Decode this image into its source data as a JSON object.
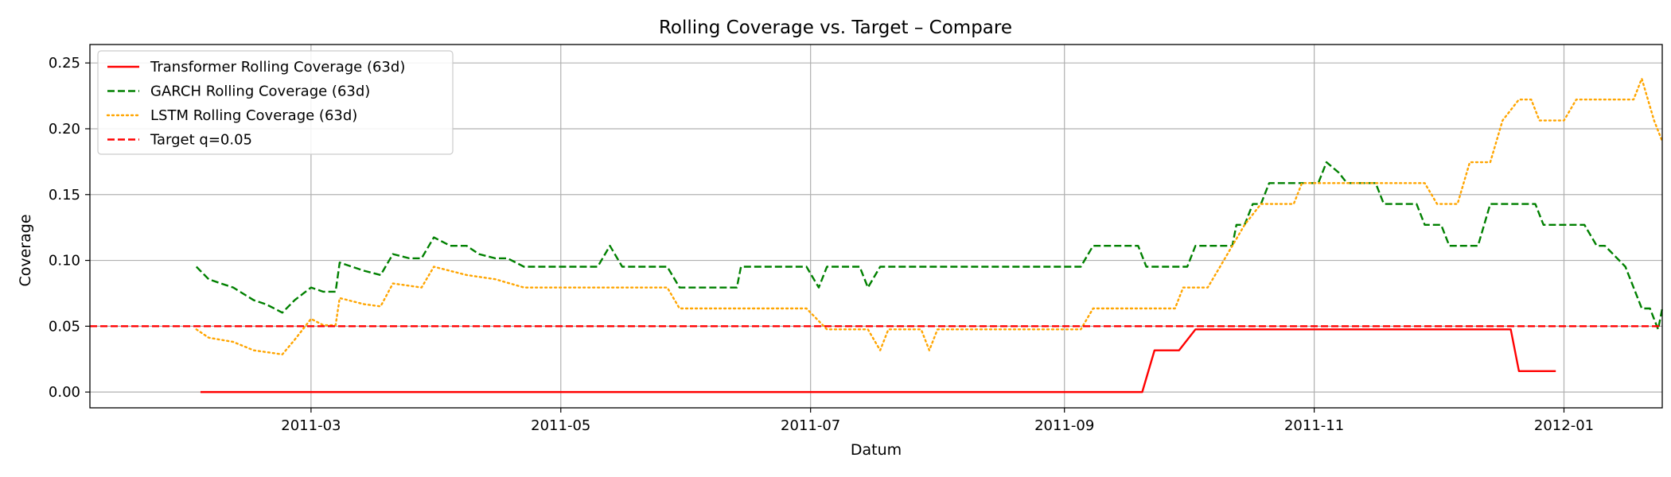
{
  "chart_data": {
    "type": "line",
    "title": "Rolling Coverage vs. Target – Compare",
    "xlabel": "Datum",
    "ylabel": "Coverage",
    "xlim": [
      "2011-01-06",
      "2012-01-25"
    ],
    "ylim": [
      -0.012,
      0.264
    ],
    "grid": true,
    "legend_position": "top-left",
    "x_ticks": [
      "2011-03-01",
      "2011-05-01",
      "2011-07-01",
      "2011-09-01",
      "2011-11-01",
      "2012-01-01"
    ],
    "x_tick_labels": [
      "2011-03",
      "2011-05",
      "2011-07",
      "2011-09",
      "2011-11",
      "2012-01"
    ],
    "y_ticks": [
      0.0,
      0.05,
      0.1,
      0.15,
      0.2,
      0.25
    ],
    "y_tick_labels": [
      "0.00",
      "0.05",
      "0.10",
      "0.15",
      "0.20",
      "0.25"
    ],
    "series": [
      {
        "name": "Transformer Rolling Coverage (63d)",
        "color": "#ff0000",
        "style": "solid",
        "points": [
          [
            "2011-02-02",
            0.0
          ],
          [
            "2011-09-20",
            0.0
          ],
          [
            "2011-09-23",
            0.0317
          ],
          [
            "2011-09-29",
            0.0317
          ],
          [
            "2011-10-03",
            0.0476
          ],
          [
            "2011-12-19",
            0.0476
          ],
          [
            "2011-12-21",
            0.0159
          ],
          [
            "2011-12-30",
            0.0159
          ]
        ]
      },
      {
        "name": "GARCH Rolling Coverage (63d)",
        "color": "#008000",
        "style": "dashed",
        "points": [
          [
            "2011-02-01",
            0.0952
          ],
          [
            "2011-02-04",
            0.0857
          ],
          [
            "2011-02-07",
            0.0825
          ],
          [
            "2011-02-10",
            0.0794
          ],
          [
            "2011-02-15",
            0.0698
          ],
          [
            "2011-02-18",
            0.0667
          ],
          [
            "2011-02-22",
            0.0603
          ],
          [
            "2011-02-25",
            0.0698
          ],
          [
            "2011-03-01",
            0.0794
          ],
          [
            "2011-03-04",
            0.0762
          ],
          [
            "2011-03-07",
            0.0762
          ],
          [
            "2011-03-08",
            0.0984
          ],
          [
            "2011-03-11",
            0.0952
          ],
          [
            "2011-03-14",
            0.0921
          ],
          [
            "2011-03-18",
            0.0889
          ],
          [
            "2011-03-21",
            0.1048
          ],
          [
            "2011-03-25",
            0.1016
          ],
          [
            "2011-03-28",
            0.1016
          ],
          [
            "2011-03-31",
            0.1175
          ],
          [
            "2011-04-04",
            0.1111
          ],
          [
            "2011-04-08",
            0.1111
          ],
          [
            "2011-04-11",
            0.1048
          ],
          [
            "2011-04-15",
            0.1016
          ],
          [
            "2011-04-18",
            0.1016
          ],
          [
            "2011-04-22",
            0.0952
          ],
          [
            "2011-05-10",
            0.0952
          ],
          [
            "2011-05-13",
            0.1111
          ],
          [
            "2011-05-16",
            0.0952
          ],
          [
            "2011-05-27",
            0.0952
          ],
          [
            "2011-05-30",
            0.0794
          ],
          [
            "2011-06-13",
            0.0794
          ],
          [
            "2011-06-14",
            0.0952
          ],
          [
            "2011-06-30",
            0.0952
          ],
          [
            "2011-07-03",
            0.0794
          ],
          [
            "2011-07-05",
            0.0952
          ],
          [
            "2011-07-13",
            0.0952
          ],
          [
            "2011-07-15",
            0.0794
          ],
          [
            "2011-07-18",
            0.0952
          ],
          [
            "2011-09-05",
            0.0952
          ],
          [
            "2011-09-08",
            0.1111
          ],
          [
            "2011-09-19",
            0.1111
          ],
          [
            "2011-09-21",
            0.0952
          ],
          [
            "2011-10-01",
            0.0952
          ],
          [
            "2011-10-03",
            0.1111
          ],
          [
            "2011-10-12",
            0.1111
          ],
          [
            "2011-10-13",
            0.127
          ],
          [
            "2011-10-15",
            0.127
          ],
          [
            "2011-10-17",
            0.1429
          ],
          [
            "2011-10-19",
            0.1429
          ],
          [
            "2011-10-21",
            0.1587
          ],
          [
            "2011-11-02",
            0.1587
          ],
          [
            "2011-11-04",
            0.1746
          ],
          [
            "2011-11-07",
            0.1667
          ],
          [
            "2011-11-09",
            0.1587
          ],
          [
            "2011-11-16",
            0.1587
          ],
          [
            "2011-11-18",
            0.1429
          ],
          [
            "2011-11-26",
            0.1429
          ],
          [
            "2011-11-28",
            0.127
          ],
          [
            "2011-12-02",
            0.127
          ],
          [
            "2011-12-04",
            0.1111
          ],
          [
            "2011-12-11",
            0.1111
          ],
          [
            "2011-12-14",
            0.1429
          ],
          [
            "2011-12-25",
            0.1429
          ],
          [
            "2011-12-27",
            0.127
          ],
          [
            "2012-01-06",
            0.127
          ],
          [
            "2012-01-09",
            0.1111
          ],
          [
            "2012-01-11",
            0.1111
          ],
          [
            "2012-01-16",
            0.0952
          ],
          [
            "2012-01-18",
            0.0794
          ],
          [
            "2012-01-20",
            0.0635
          ],
          [
            "2012-01-22",
            0.0635
          ],
          [
            "2012-01-24",
            0.0476
          ],
          [
            "2012-01-25",
            0.0635
          ],
          [
            "2012-01-25",
            0.0635
          ]
        ]
      },
      {
        "name": "LSTM Rolling Coverage (63d)",
        "color": "#ffa500",
        "style": "dotted",
        "points": [
          [
            "2011-02-01",
            0.0476
          ],
          [
            "2011-02-04",
            0.0413
          ],
          [
            "2011-02-10",
            0.0381
          ],
          [
            "2011-02-15",
            0.0317
          ],
          [
            "2011-02-22",
            0.0286
          ],
          [
            "2011-02-25",
            0.0397
          ],
          [
            "2011-03-01",
            0.0556
          ],
          [
            "2011-03-04",
            0.0508
          ],
          [
            "2011-03-07",
            0.0508
          ],
          [
            "2011-03-08",
            0.0714
          ],
          [
            "2011-03-14",
            0.0667
          ],
          [
            "2011-03-18",
            0.0651
          ],
          [
            "2011-03-21",
            0.0825
          ],
          [
            "2011-03-28",
            0.0794
          ],
          [
            "2011-03-31",
            0.0952
          ],
          [
            "2011-04-08",
            0.0889
          ],
          [
            "2011-04-15",
            0.0857
          ],
          [
            "2011-04-22",
            0.0794
          ],
          [
            "2011-05-27",
            0.0794
          ],
          [
            "2011-05-30",
            0.0635
          ],
          [
            "2011-06-30",
            0.0635
          ],
          [
            "2011-07-05",
            0.0476
          ],
          [
            "2011-07-15",
            0.0476
          ],
          [
            "2011-07-18",
            0.0317
          ],
          [
            "2011-07-20",
            0.0476
          ],
          [
            "2011-07-28",
            0.0476
          ],
          [
            "2011-07-30",
            0.0317
          ],
          [
            "2011-08-01",
            0.0476
          ],
          [
            "2011-09-05",
            0.0476
          ],
          [
            "2011-09-08",
            0.0635
          ],
          [
            "2011-09-28",
            0.0635
          ],
          [
            "2011-09-30",
            0.0794
          ],
          [
            "2011-10-06",
            0.0794
          ],
          [
            "2011-10-09",
            0.0952
          ],
          [
            "2011-10-12",
            0.1111
          ],
          [
            "2011-10-15",
            0.127
          ],
          [
            "2011-10-19",
            0.1429
          ],
          [
            "2011-10-27",
            0.1429
          ],
          [
            "2011-10-29",
            0.1587
          ],
          [
            "2011-11-09",
            0.1587
          ],
          [
            "2011-11-16",
            0.1587
          ],
          [
            "2011-11-18",
            0.1587
          ],
          [
            "2011-11-28",
            0.1587
          ],
          [
            "2011-12-01",
            0.1429
          ],
          [
            "2011-12-06",
            0.1429
          ],
          [
            "2011-12-09",
            0.1746
          ],
          [
            "2011-12-14",
            0.1746
          ],
          [
            "2011-12-17",
            0.2063
          ],
          [
            "2011-12-21",
            0.2222
          ],
          [
            "2011-12-24",
            0.2222
          ],
          [
            "2011-12-26",
            0.2063
          ],
          [
            "2012-01-01",
            0.2063
          ],
          [
            "2012-01-04",
            0.2222
          ],
          [
            "2012-01-18",
            0.2222
          ],
          [
            "2012-01-20",
            0.2381
          ],
          [
            "2012-01-23",
            0.2063
          ],
          [
            "2012-01-25",
            0.1905
          ]
        ]
      },
      {
        "name": "Target q=0.05",
        "color": "#ff0000",
        "style": "dashed",
        "points": [
          [
            "2011-01-06",
            0.05
          ],
          [
            "2012-01-25",
            0.05
          ]
        ]
      }
    ]
  }
}
